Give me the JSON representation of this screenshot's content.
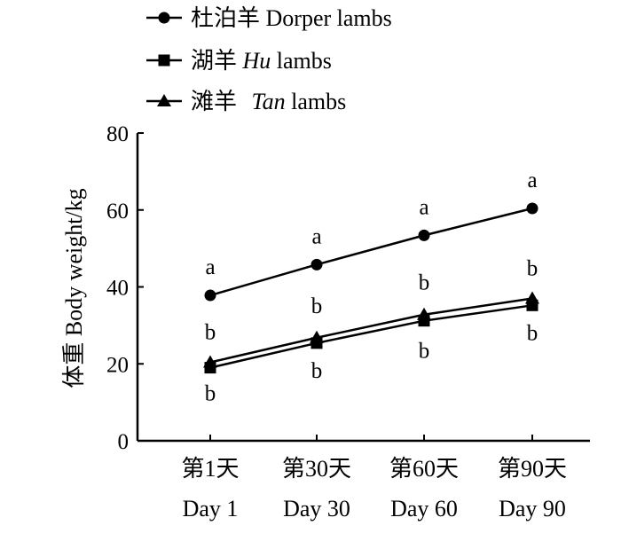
{
  "chart_data": {
    "type": "line",
    "ylabel": "体重 Body weight/kg",
    "ylim": [
      0,
      80
    ],
    "yticks": [
      0,
      20,
      40,
      60,
      80
    ],
    "categories": [
      {
        "cn": "第1天",
        "en": "Day 1"
      },
      {
        "cn": "第30天",
        "en": "Day 30"
      },
      {
        "cn": "第60天",
        "en": "Day 60"
      },
      {
        "cn": "第90天",
        "en": "Day 90"
      }
    ],
    "series": [
      {
        "name_cn": "杜泊羊",
        "name_en": "Dorper",
        "name_suffix": "lambs",
        "marker": "circle",
        "values": [
          37.8,
          45.8,
          53.4,
          60.4
        ],
        "letters": [
          "a",
          "a",
          "a",
          "a"
        ]
      },
      {
        "name_cn": "湖羊",
        "name_en": "Hu",
        "name_suffix": "lambs",
        "marker": "square",
        "values": [
          19.0,
          25.4,
          31.2,
          35.2
        ],
        "letters": [
          "b",
          "b",
          "b",
          "b"
        ]
      },
      {
        "name_cn": "滩羊",
        "name_en": "Tan",
        "name_suffix": "lambs",
        "marker": "triangle",
        "values": [
          20.4,
          26.8,
          32.8,
          37.0
        ],
        "letters": [
          "b",
          "b",
          "b",
          "b"
        ]
      }
    ],
    "legend_position": "top-left",
    "grid": false
  }
}
